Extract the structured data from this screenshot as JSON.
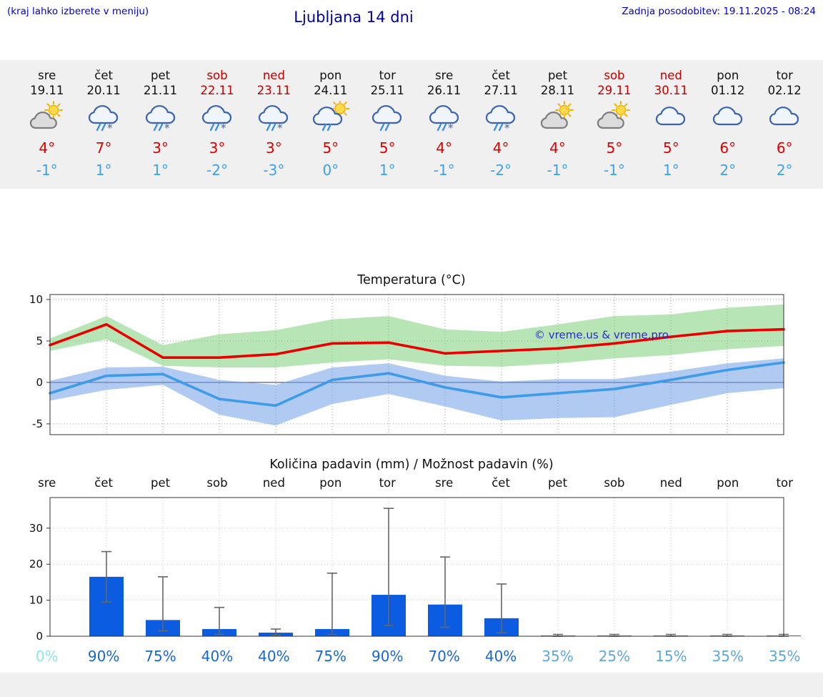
{
  "header": {
    "hint": "(kraj lahko izberete v meniju)",
    "title": "Ljubljana 14 dni",
    "updated": "Zadnja posodobitev: 19.11.2025 - 08:24"
  },
  "days": [
    {
      "name": "sre",
      "date": "19.11",
      "weekend": false,
      "icon": "sun-cloud",
      "high": "4°",
      "low": "-1°"
    },
    {
      "name": "čet",
      "date": "20.11",
      "weekend": false,
      "icon": "rain-snow",
      "high": "7°",
      "low": "1°"
    },
    {
      "name": "pet",
      "date": "21.11",
      "weekend": false,
      "icon": "rain-snow",
      "high": "3°",
      "low": "1°"
    },
    {
      "name": "sob",
      "date": "22.11",
      "weekend": true,
      "icon": "rain-snow",
      "high": "3°",
      "low": "-2°"
    },
    {
      "name": "ned",
      "date": "23.11",
      "weekend": true,
      "icon": "rain-snow",
      "high": "3°",
      "low": "-3°"
    },
    {
      "name": "pon",
      "date": "24.11",
      "weekend": false,
      "icon": "sun-rain",
      "high": "5°",
      "low": "0°"
    },
    {
      "name": "tor",
      "date": "25.11",
      "weekend": false,
      "icon": "rain",
      "high": "5°",
      "low": "1°"
    },
    {
      "name": "sre",
      "date": "26.11",
      "weekend": false,
      "icon": "rain-snow",
      "high": "4°",
      "low": "-1°"
    },
    {
      "name": "čet",
      "date": "27.11",
      "weekend": false,
      "icon": "rain-snow",
      "high": "4°",
      "low": "-2°"
    },
    {
      "name": "pet",
      "date": "28.11",
      "weekend": false,
      "icon": "sun-cloud",
      "high": "4°",
      "low": "-1°"
    },
    {
      "name": "sob",
      "date": "29.11",
      "weekend": true,
      "icon": "sun-cloud",
      "high": "5°",
      "low": "-1°"
    },
    {
      "name": "ned",
      "date": "30.11",
      "weekend": true,
      "icon": "cloud",
      "high": "5°",
      "low": "1°"
    },
    {
      "name": "pon",
      "date": "01.12",
      "weekend": false,
      "icon": "cloud",
      "high": "6°",
      "low": "2°"
    },
    {
      "name": "tor",
      "date": "02.12",
      "weekend": false,
      "icon": "cloud",
      "high": "6°",
      "low": "2°"
    }
  ],
  "chart_data": [
    {
      "type": "line",
      "title": "Temperatura (°C)",
      "watermark": "© vreme.us & vreme.pro",
      "ylim": [
        -6.3,
        10.6
      ],
      "yticks": [
        {
          "v": 10,
          "label": "10"
        },
        {
          "v": 5,
          "label": "5"
        },
        {
          "v": 0,
          "label": "0"
        },
        {
          "v": -5,
          "label": "-5"
        }
      ],
      "x_days": [
        "sre",
        "čet",
        "pet",
        "sob",
        "ned",
        "pon",
        "tor",
        "sre",
        "čet",
        "pet",
        "sob",
        "ned",
        "pon",
        "tor"
      ],
      "series": {
        "temp_max": [
          4.5,
          7.0,
          3.0,
          3.0,
          3.4,
          4.7,
          4.8,
          3.5,
          3.8,
          4.1,
          4.7,
          5.5,
          6.2,
          6.4
        ],
        "temp_min": [
          -1.3,
          0.8,
          1.0,
          -2.0,
          -2.8,
          0.3,
          1.1,
          -0.6,
          -1.8,
          -1.3,
          -0.8,
          0.3,
          1.5,
          2.4
        ],
        "max_range_upper": [
          5.3,
          8.0,
          4.5,
          5.8,
          6.3,
          7.6,
          8.0,
          6.4,
          6.1,
          7.0,
          8.0,
          8.2,
          9.0,
          9.4
        ],
        "max_range_lower": [
          3.8,
          5.2,
          2.0,
          1.8,
          1.8,
          2.4,
          2.8,
          2.0,
          1.9,
          2.3,
          2.9,
          3.3,
          4.0,
          4.4
        ],
        "min_range_upper": [
          0.2,
          1.8,
          1.9,
          0.3,
          -0.3,
          1.8,
          2.3,
          0.8,
          0.1,
          0.4,
          0.4,
          1.3,
          2.3,
          2.9
        ],
        "min_range_lower": [
          -2.2,
          -0.9,
          -0.3,
          -3.9,
          -5.2,
          -2.6,
          -1.4,
          -2.9,
          -4.6,
          -4.3,
          -4.2,
          -2.7,
          -1.3,
          -0.7
        ]
      },
      "colors": {
        "max_line": "#e80000",
        "min_line": "#3d9be9",
        "max_band": "#7ccf78",
        "min_band": "#6f9fe8"
      }
    },
    {
      "type": "bar",
      "title": "Količina padavin (mm) / Možnost padavin (%)",
      "day_labels": [
        "sre",
        "čet",
        "pet",
        "sob",
        "ned",
        "pon",
        "tor",
        "sre",
        "čet",
        "pet",
        "sob",
        "ned",
        "pon",
        "tor"
      ],
      "ylim": [
        0,
        38.5
      ],
      "yticks": [
        {
          "v": 0,
          "label": "0"
        },
        {
          "v": 10,
          "label": "10"
        },
        {
          "v": 20,
          "label": "20"
        },
        {
          "v": 30,
          "label": "30"
        }
      ],
      "bars_mm": [
        0,
        16.5,
        4.5,
        2,
        1,
        2,
        11.5,
        8.8,
        5,
        0.15,
        0.15,
        0.15,
        0.15,
        0.15
      ],
      "whisker_low": [
        0,
        9.5,
        1.5,
        0.5,
        0.3,
        0.5,
        3,
        2.5,
        1,
        0,
        0,
        0,
        0,
        0
      ],
      "whisker_high": [
        0,
        23.5,
        16.5,
        8,
        2,
        17.5,
        35.5,
        22,
        14.5,
        0.5,
        0.5,
        0.5,
        0.5,
        0.5
      ],
      "bar_color": "#0b5ce0",
      "percents": [
        {
          "label": "0%",
          "color": "#90e6e6"
        },
        {
          "label": "90%",
          "color": "#1b67cb"
        },
        {
          "label": "75%",
          "color": "#1b67cb"
        },
        {
          "label": "40%",
          "color": "#1b67cb"
        },
        {
          "label": "40%",
          "color": "#1b67cb"
        },
        {
          "label": "75%",
          "color": "#1b67cb"
        },
        {
          "label": "90%",
          "color": "#1b67cb"
        },
        {
          "label": "70%",
          "color": "#1b67cb"
        },
        {
          "label": "40%",
          "color": "#1b67cb"
        },
        {
          "label": "35%",
          "color": "#5fa8d8"
        },
        {
          "label": "25%",
          "color": "#5fa8d8"
        },
        {
          "label": "15%",
          "color": "#5fa8d8"
        },
        {
          "label": "35%",
          "color": "#5fa8d8"
        },
        {
          "label": "35%",
          "color": "#5fa8d8"
        }
      ]
    }
  ]
}
